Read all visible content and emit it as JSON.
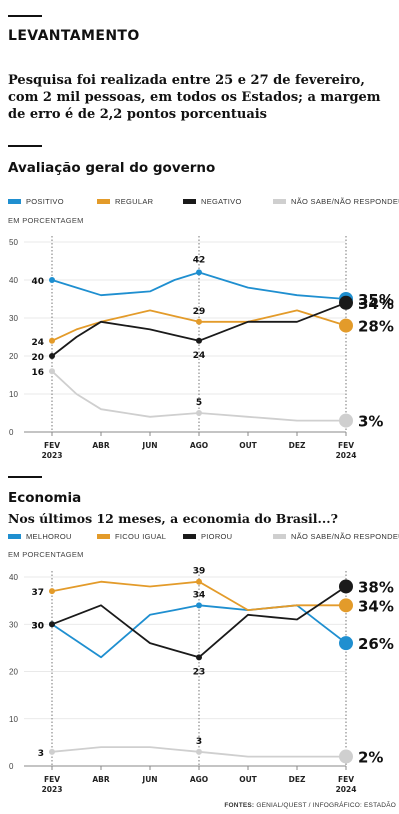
{
  "kicker": "LEVANTAMENTO",
  "intro": "Pesquisa foi realizada entre 25 e 27 de fevereiro, com 2 mil pessoas, em todos os Estados; a margem de erro é de 2,2 pontos porcentuais",
  "sources": {
    "label": "FONTES:",
    "text": "GENIAL/QUEST / INFOGRÁFICO: ESTADÃO"
  },
  "chart_data": [
    {
      "type": "line",
      "title": "Avaliação geral do governo",
      "subtitle": "",
      "ylabel": "EM PORCENTAGEM",
      "ylim": [
        0,
        50
      ],
      "yticks": [
        0,
        10,
        20,
        30,
        40,
        50
      ],
      "grid": true,
      "legend_position": "top",
      "x": [
        "FEV 2023",
        "MAR 2023",
        "ABR 2023",
        "MAI 2023",
        "JUN 2023",
        "JUL 2023",
        "AGO 2023",
        "SET 2023",
        "OUT 2023",
        "NOV 2023",
        "DEZ 2023",
        "JAN 2024",
        "FEV 2024"
      ],
      "xtick_labels": [
        {
          "top": "FEV",
          "bottom": "2023"
        },
        {
          "top": "ABR",
          "bottom": ""
        },
        {
          "top": "JUN",
          "bottom": ""
        },
        {
          "top": "AGO",
          "bottom": ""
        },
        {
          "top": "OUT",
          "bottom": ""
        },
        {
          "top": "DEZ",
          "bottom": ""
        },
        {
          "top": "FEV",
          "bottom": "2024"
        }
      ],
      "xtick_index": [
        0,
        2,
        4,
        6,
        8,
        10,
        12
      ],
      "highlight_index": 6,
      "series": [
        {
          "name": "POSITIVO",
          "color": "#1f8fd0",
          "values": [
            40,
            38,
            36,
            36.5,
            37,
            40,
            42,
            40,
            38,
            37,
            36,
            35.5,
            35
          ],
          "labels": {
            "0": "40",
            "6": "42",
            "12": "35%"
          }
        },
        {
          "name": "REGULAR",
          "color": "#e39b2a",
          "values": [
            24,
            27,
            29,
            30.5,
            32,
            30.5,
            29,
            29,
            29,
            30.5,
            32,
            30,
            28
          ],
          "labels": {
            "0": "24",
            "6": "29",
            "12": "28%"
          }
        },
        {
          "name": "NEGATIVO",
          "color": "#1a1a1a",
          "values": [
            20,
            25,
            29,
            28,
            27,
            25.5,
            24,
            26.5,
            29,
            29,
            29,
            31.5,
            34
          ],
          "labels": {
            "0": "20",
            "6": "24",
            "12": "34%"
          }
        },
        {
          "name": "NÃO SABE/NÃO RESPONDEU",
          "color": "#cfcfcf",
          "values": [
            16,
            10,
            6,
            5,
            4,
            4.5,
            5,
            4.5,
            4,
            3.5,
            3,
            3,
            3
          ],
          "labels": {
            "0": "16",
            "6": "5",
            "12": "3%"
          }
        }
      ]
    },
    {
      "type": "line",
      "title": "Economia",
      "subtitle": "Nos últimos 12 meses, a economia do Brasil...?",
      "ylabel": "EM PORCENTAGEM",
      "ylim": [
        0,
        40
      ],
      "yticks": [
        0,
        10,
        20,
        30,
        40
      ],
      "grid": true,
      "legend_position": "top",
      "x": [
        "FEV 2023",
        "MAR 2023",
        "ABR 2023",
        "MAI 2023",
        "JUN 2023",
        "JUL 2023",
        "AGO 2023",
        "SET 2023",
        "OUT 2023",
        "NOV 2023",
        "DEZ 2023",
        "JAN 2024",
        "FEV 2024"
      ],
      "xtick_labels": [
        {
          "top": "FEV",
          "bottom": "2023"
        },
        {
          "top": "ABR",
          "bottom": ""
        },
        {
          "top": "JUN",
          "bottom": ""
        },
        {
          "top": "AGO",
          "bottom": ""
        },
        {
          "top": "OUT",
          "bottom": ""
        },
        {
          "top": "DEZ",
          "bottom": ""
        },
        {
          "top": "FEV",
          "bottom": "2024"
        }
      ],
      "xtick_index": [
        0,
        2,
        4,
        6,
        8,
        10,
        12
      ],
      "highlight_index": 6,
      "series": [
        {
          "name": "MELHOROU",
          "color": "#1f8fd0",
          "values": [
            30,
            26.5,
            23,
            27.5,
            32,
            33,
            34,
            33.5,
            33,
            33.5,
            34,
            30,
            26
          ],
          "labels": {
            "0": "30",
            "6": "34",
            "12": "26%"
          }
        },
        {
          "name": "FICOU IGUAL",
          "color": "#e39b2a",
          "values": [
            37,
            38,
            39,
            38.5,
            38,
            38.5,
            39,
            36,
            33,
            33.5,
            34,
            34,
            34
          ],
          "labels": {
            "0": "37",
            "6": "39",
            "12": "34%"
          }
        },
        {
          "name": "PIOROU",
          "color": "#1a1a1a",
          "values": [
            30,
            32,
            34,
            30,
            26,
            24.5,
            23,
            27.5,
            32,
            31.5,
            31,
            34.5,
            38
          ],
          "labels": {
            "0": "30",
            "6": "23",
            "12": "38%"
          }
        },
        {
          "name": "NÃO SABE/NÃO RESPONDEU",
          "color": "#cfcfcf",
          "values": [
            3,
            3.5,
            4,
            4,
            4,
            3.5,
            3,
            2.5,
            2,
            2,
            2,
            2,
            2
          ],
          "labels": {
            "0": "3",
            "6": "3",
            "12": "2%"
          }
        }
      ]
    }
  ]
}
